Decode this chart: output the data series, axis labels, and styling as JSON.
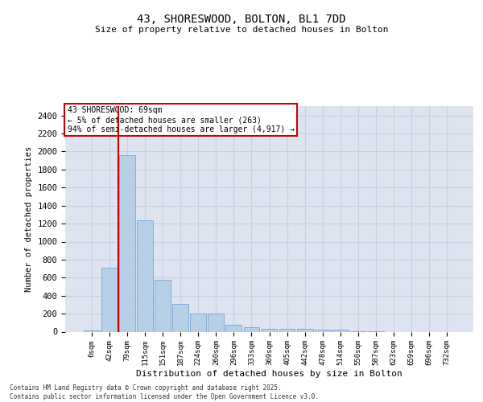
{
  "title_line1": "43, SHORESWOOD, BOLTON, BL1 7DD",
  "title_line2": "Size of property relative to detached houses in Bolton",
  "xlabel": "Distribution of detached houses by size in Bolton",
  "ylabel": "Number of detached properties",
  "categories": [
    "6sqm",
    "42sqm",
    "79sqm",
    "115sqm",
    "151sqm",
    "187sqm",
    "224sqm",
    "260sqm",
    "296sqm",
    "333sqm",
    "369sqm",
    "405sqm",
    "442sqm",
    "478sqm",
    "514sqm",
    "550sqm",
    "587sqm",
    "623sqm",
    "659sqm",
    "696sqm",
    "732sqm"
  ],
  "values": [
    15,
    710,
    1960,
    1235,
    575,
    305,
    200,
    200,
    80,
    45,
    35,
    35,
    35,
    20,
    20,
    5,
    5,
    0,
    0,
    0,
    0
  ],
  "bar_color": "#b8cfe8",
  "bar_edge_color": "#6699cc",
  "grid_color": "#c8cfe0",
  "background_color": "#dde4f0",
  "vline_color": "#cc0000",
  "annotation_text": "43 SHORESWOOD: 69sqm\n← 5% of detached houses are smaller (263)\n94% of semi-detached houses are larger (4,917) →",
  "annotation_box_facecolor": "white",
  "annotation_box_edgecolor": "#cc0000",
  "footnote": "Contains HM Land Registry data © Crown copyright and database right 2025.\nContains public sector information licensed under the Open Government Licence v3.0.",
  "ylim": [
    0,
    2500
  ],
  "yticks": [
    0,
    200,
    400,
    600,
    800,
    1000,
    1200,
    1400,
    1600,
    1800,
    2000,
    2200,
    2400
  ]
}
